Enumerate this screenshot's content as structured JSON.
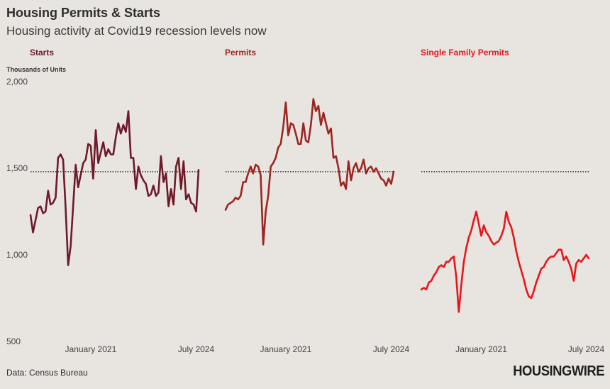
{
  "header": {
    "title": "Housing Permits & Starts",
    "subtitle": "Housing activity at Covid19 recession levels now"
  },
  "footer": {
    "source": "Data: Census Bureau",
    "brand": "HOUSINGWIRE"
  },
  "chart_data": {
    "type": "line",
    "ylabel": "Thousands of Units",
    "ylim": [
      500,
      2000
    ],
    "y_ticks": [
      500,
      1000,
      1500,
      2000
    ],
    "y_tick_labels": [
      "500",
      "1,000",
      "1,500",
      "2,000"
    ],
    "x_range": [
      "2019-01",
      "2024-08"
    ],
    "x_ticks": [
      {
        "value": "2021-01",
        "label": "January 2021"
      },
      {
        "value": "2024-07",
        "label": "July 2024"
      }
    ],
    "reference_line": 1480,
    "grid": false,
    "months": [
      "2019-01",
      "2019-02",
      "2019-03",
      "2019-04",
      "2019-05",
      "2019-06",
      "2019-07",
      "2019-08",
      "2019-09",
      "2019-10",
      "2019-11",
      "2019-12",
      "2020-01",
      "2020-02",
      "2020-03",
      "2020-04",
      "2020-05",
      "2020-06",
      "2020-07",
      "2020-08",
      "2020-09",
      "2020-10",
      "2020-11",
      "2020-12",
      "2021-01",
      "2021-02",
      "2021-03",
      "2021-04",
      "2021-05",
      "2021-06",
      "2021-07",
      "2021-08",
      "2021-09",
      "2021-10",
      "2021-11",
      "2021-12",
      "2022-01",
      "2022-02",
      "2022-03",
      "2022-04",
      "2022-05",
      "2022-06",
      "2022-07",
      "2022-08",
      "2022-09",
      "2022-10",
      "2022-11",
      "2022-12",
      "2023-01",
      "2023-02",
      "2023-03",
      "2023-04",
      "2023-05",
      "2023-06",
      "2023-07",
      "2023-08",
      "2023-09",
      "2023-10",
      "2023-11",
      "2023-12",
      "2024-01",
      "2024-02",
      "2024-03",
      "2024-04",
      "2024-05",
      "2024-06",
      "2024-07",
      "2024-08"
    ],
    "series": [
      {
        "name": "Starts",
        "color": "#6e1a2a",
        "values": [
          1230,
          1130,
          1200,
          1270,
          1280,
          1240,
          1250,
          1370,
          1290,
          1300,
          1330,
          1560,
          1580,
          1550,
          1270,
          940,
          1050,
          1280,
          1520,
          1390,
          1460,
          1530,
          1550,
          1640,
          1630,
          1440,
          1720,
          1530,
          1590,
          1650,
          1570,
          1610,
          1580,
          1580,
          1680,
          1760,
          1700,
          1750,
          1710,
          1830,
          1560,
          1560,
          1380,
          1510,
          1460,
          1430,
          1410,
          1340,
          1350,
          1400,
          1340,
          1360,
          1570,
          1420,
          1470,
          1280,
          1380,
          1290,
          1510,
          1560,
          1380,
          1540,
          1320,
          1350,
          1300,
          1290,
          1250,
          1490
        ]
      },
      {
        "name": "Permits",
        "color": "#9c2622",
        "values": [
          1260,
          1290,
          1300,
          1310,
          1330,
          1320,
          1340,
          1420,
          1420,
          1470,
          1510,
          1470,
          1520,
          1510,
          1460,
          1060,
          1250,
          1340,
          1510,
          1530,
          1560,
          1620,
          1640,
          1740,
          1880,
          1690,
          1760,
          1750,
          1700,
          1640,
          1640,
          1760,
          1660,
          1650,
          1750,
          1900,
          1830,
          1860,
          1750,
          1820,
          1760,
          1700,
          1730,
          1560,
          1570,
          1500,
          1400,
          1420,
          1380,
          1540,
          1430,
          1500,
          1530,
          1480,
          1500,
          1550,
          1470,
          1500,
          1510,
          1480,
          1500,
          1470,
          1440,
          1430,
          1400,
          1440,
          1410,
          1480
        ]
      },
      {
        "name": "Single Family Permits",
        "color": "#e8161b",
        "values": [
          800,
          810,
          800,
          840,
          850,
          880,
          900,
          930,
          940,
          930,
          960,
          960,
          980,
          990,
          870,
          670,
          830,
          960,
          1040,
          1100,
          1140,
          1200,
          1250,
          1180,
          1110,
          1170,
          1130,
          1110,
          1080,
          1060,
          1070,
          1080,
          1110,
          1150,
          1250,
          1190,
          1160,
          1100,
          1020,
          960,
          910,
          860,
          800,
          760,
          750,
          790,
          840,
          880,
          920,
          930,
          960,
          980,
          990,
          990,
          1010,
          1030,
          1030,
          970,
          990,
          960,
          920,
          850,
          950,
          970,
          960,
          980,
          1000,
          980
        ]
      }
    ]
  }
}
